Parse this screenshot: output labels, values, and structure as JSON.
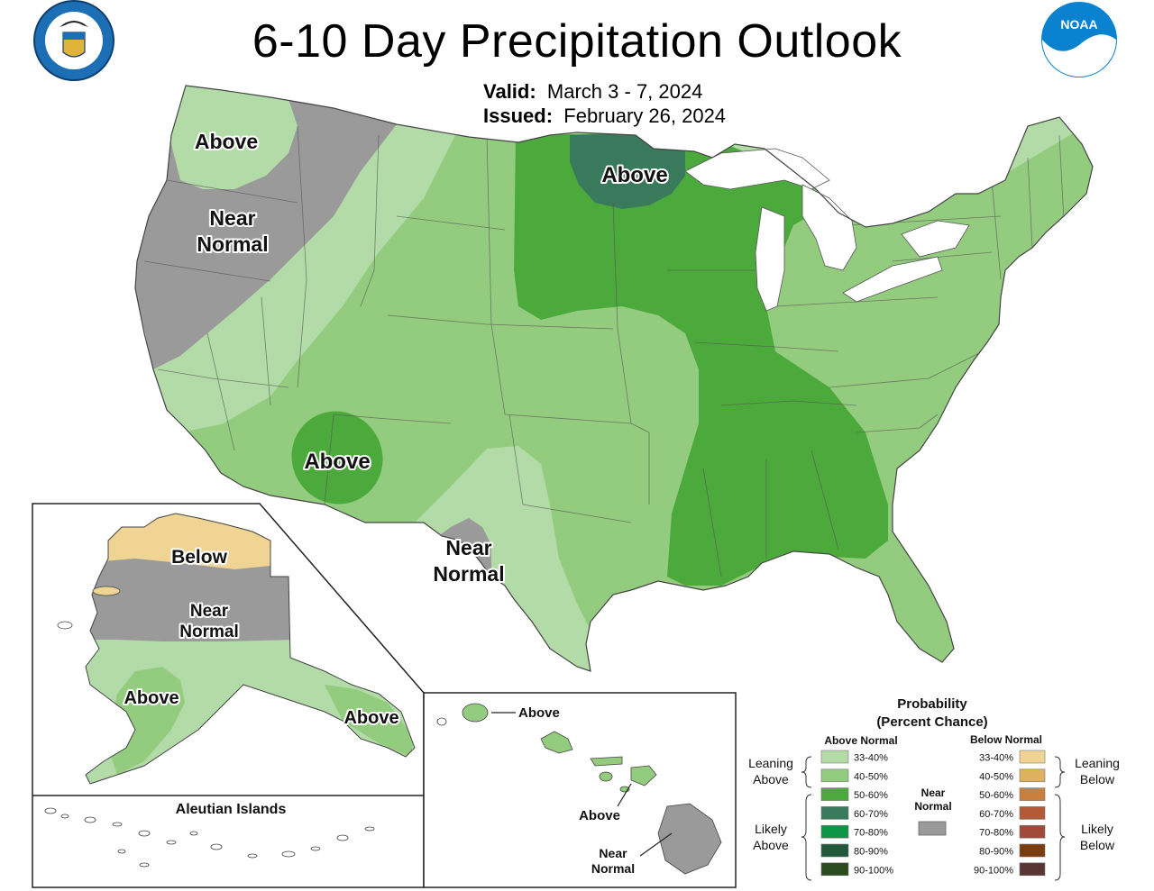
{
  "title": "6-10 Day Precipitation Outlook",
  "valid": {
    "label": "Valid:",
    "value": "March 3 - 7, 2024"
  },
  "issued": {
    "label": "Issued:",
    "value": "February 26, 2024"
  },
  "logos": {
    "left": {
      "name": "department-of-commerce-seal",
      "text": "DEPARTMENT OF COMMERCE · UNITED STATES OF AMERICA"
    },
    "right": {
      "name": "noaa-logo",
      "text": "NOAA"
    }
  },
  "map_labels": {
    "pacific_nw": "Above",
    "west_near_1": "Near",
    "west_near_2": "Normal",
    "upper_mw": "Above",
    "arizona": "Above",
    "texas_near_1": "Near",
    "texas_near_2": "Normal",
    "ak_below": "Below",
    "ak_near_1": "Near",
    "ak_near_2": "Normal",
    "ak_above_sw": "Above",
    "ak_above_se": "Above",
    "aleutians": "Aleutian Islands",
    "hi_above_1": "Above",
    "hi_above_2": "Above",
    "hi_near_1": "Near",
    "hi_near_2": "Normal"
  },
  "legend": {
    "title_1": "Probability",
    "title_2": "(Percent Chance)",
    "above_header": "Above Normal",
    "below_header": "Below Normal",
    "near_1": "Near",
    "near_2": "Normal",
    "near_color": "#9a9a9a",
    "leaning_above": [
      "Leaning",
      "Above"
    ],
    "likely_above": [
      "Likely",
      "Above"
    ],
    "leaning_below": [
      "Leaning",
      "Below"
    ],
    "likely_below": [
      "Likely",
      "Below"
    ],
    "ranges": [
      "33-40%",
      "40-50%",
      "50-60%",
      "60-70%",
      "70-80%",
      "80-90%",
      "90-100%"
    ],
    "above_colors": [
      "#b3dba8",
      "#94cc7f",
      "#4caa3c",
      "#3a7a5c",
      "#0d9648",
      "#21583a",
      "#2a4a20"
    ],
    "below_colors": [
      "#f0d494",
      "#ddb15f",
      "#c8803c",
      "#b35a38",
      "#a04a3a",
      "#7a3d10",
      "#5a3535"
    ]
  },
  "colors": {
    "above_33_40": "#b3dba8",
    "above_40_50": "#94cc7f",
    "above_50_60": "#4caa3c",
    "above_60_70": "#3a7a5c",
    "below_33_40": "#f0d494",
    "near_normal": "#9a9a9a"
  }
}
